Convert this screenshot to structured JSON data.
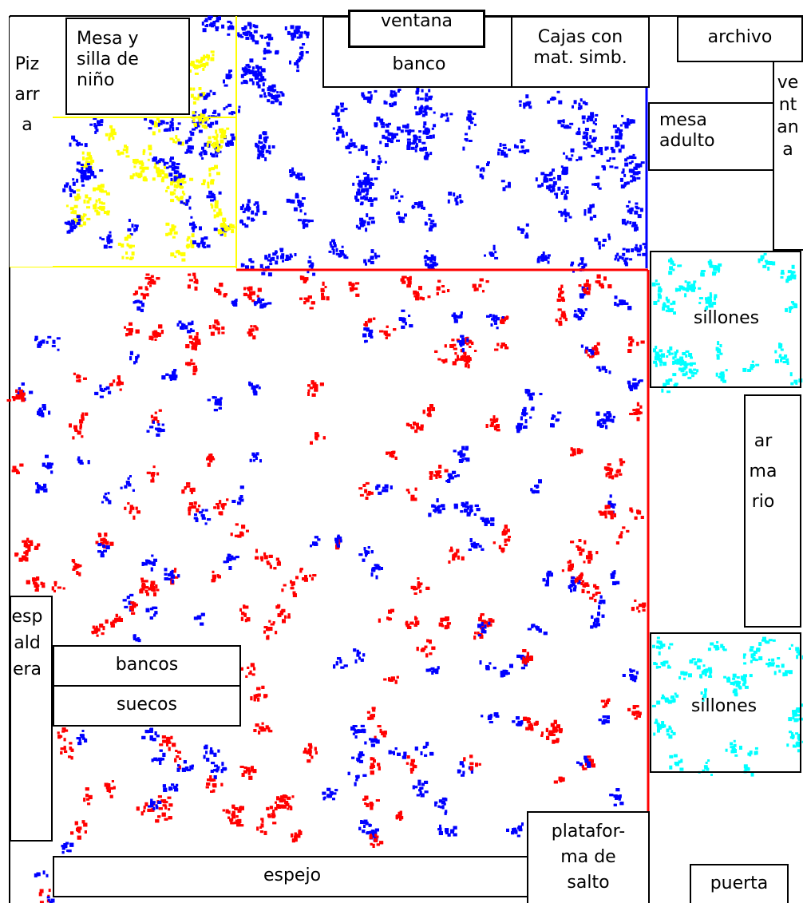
{
  "colors": {
    "blue": "#0000ff",
    "red": "#ff0000",
    "yellow": "#ffff00",
    "cyan": "#00ffff",
    "outline": "#000000"
  },
  "labels": {
    "pizarra": "Pizarra",
    "mesa_nino": "Mesa y\nsilla de\nniño",
    "ventana_top": "ventana",
    "banco": "banco",
    "cajas": "Cajas con\nmat. simb.",
    "archivo": "archivo",
    "ventana_right": "ventana",
    "mesa_adulto": "mesa\nadulto",
    "sillones_1": "sillones",
    "armario": "armario",
    "sillones_2": "sillones",
    "espaldera": "espaldera",
    "bancos": "bancos",
    "suecos": "suecos",
    "plataforma": "platafor-\nma de\nsalto",
    "espejo": "espejo",
    "puerta": "puerta"
  }
}
